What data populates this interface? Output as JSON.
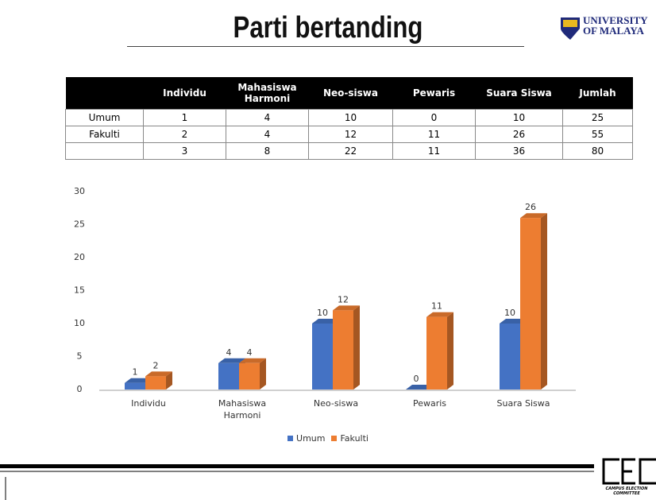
{
  "title": "Parti bertanding",
  "logo": {
    "line1": "UNIVERSITY",
    "line2": "OF MALAYA"
  },
  "footer_logo": {
    "letters": "CEC",
    "caption": "CAMPUS ELECTION COMMITTEE"
  },
  "table": {
    "header": [
      "Individu",
      "Mahasiswa Harmoni",
      "Neo-siswa",
      "Pewaris",
      "Suara Siswa",
      "Jumlah"
    ],
    "rows": [
      {
        "label": "Umum",
        "cells": [
          1,
          4,
          10,
          0,
          10,
          25
        ]
      },
      {
        "label": "Fakulti",
        "cells": [
          2,
          4,
          12,
          11,
          26,
          55
        ]
      },
      {
        "cells": [
          3,
          8,
          22,
          11,
          36,
          80
        ]
      }
    ]
  },
  "chart_data": {
    "type": "bar",
    "categories": [
      "Individu",
      "Mahasiswa Harmoni",
      "Neo-siswa",
      "Pewaris",
      "Suara Siswa"
    ],
    "series": [
      {
        "name": "Umum",
        "color": "#4472c4",
        "values": [
          1,
          4,
          10,
          0,
          10
        ]
      },
      {
        "name": "Fakulti",
        "color": "#ed7d31",
        "values": [
          2,
          4,
          12,
          11,
          26
        ]
      }
    ],
    "ylim": [
      0,
      30
    ],
    "yticks": [
      0,
      5,
      10,
      15,
      20,
      25,
      30
    ],
    "grid": false,
    "legend": "bottom"
  }
}
